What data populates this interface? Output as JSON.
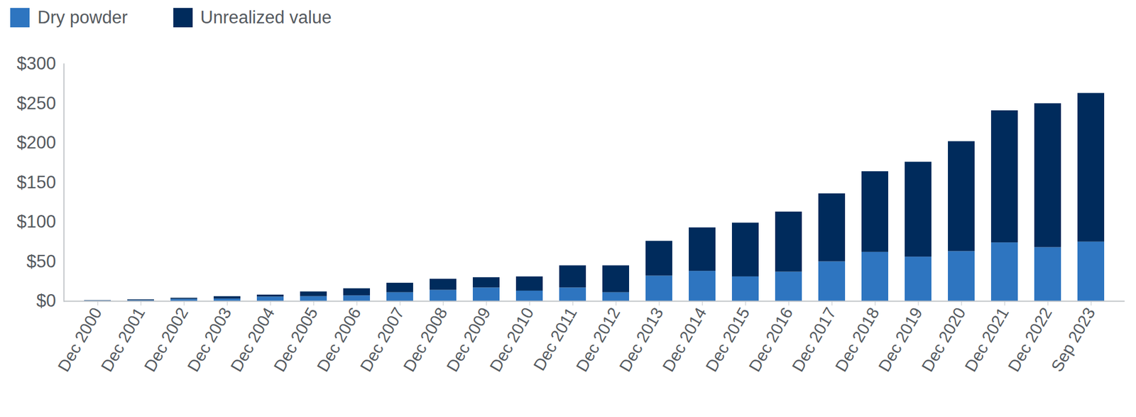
{
  "chart_data": {
    "type": "bar",
    "stacked": true,
    "legend": "top-left",
    "grid": false,
    "categories": [
      "Dec 2000",
      "Dec 2001",
      "Dec 2002",
      "Dec 2003",
      "Dec 2004",
      "Dec 2005",
      "Dec 2006",
      "Dec 2007",
      "Dec 2008",
      "Dec 2009",
      "Dec 2010",
      "Dec 2011",
      "Dec 2012",
      "Dec 2013",
      "Dec 2014",
      "Dec 2015",
      "Dec 2016",
      "Dec 2017",
      "Dec 2018",
      "Dec 2019",
      "Dec 2020",
      "Dec 2021",
      "Dec 2022",
      "Sep 2023"
    ],
    "series": [
      {
        "name": "Dry powder",
        "color": "#2e75c0",
        "values": [
          0.5,
          1,
          2.5,
          3,
          5.5,
          6,
          7,
          11,
          14,
          17,
          13,
          17,
          11,
          32,
          38,
          31,
          37,
          50,
          62,
          56,
          63,
          74,
          68,
          75
        ]
      },
      {
        "name": "Unrealized value",
        "color": "#002b5c",
        "values": [
          0.5,
          1,
          1.5,
          3,
          2.5,
          6,
          9,
          12,
          14,
          13,
          18,
          28,
          34,
          44,
          55,
          68,
          76,
          86,
          102,
          120,
          139,
          167,
          182,
          188
        ]
      }
    ],
    "ylim": [
      0,
      300
    ],
    "yticks": [
      {
        "value": 0,
        "label": "$0"
      },
      {
        "value": 50,
        "label": "$50"
      },
      {
        "value": 100,
        "label": "$100"
      },
      {
        "value": 150,
        "label": "$150"
      },
      {
        "value": 200,
        "label": "$200"
      },
      {
        "value": 250,
        "label": "$250"
      },
      {
        "value": 300,
        "label": "$300"
      }
    ]
  }
}
